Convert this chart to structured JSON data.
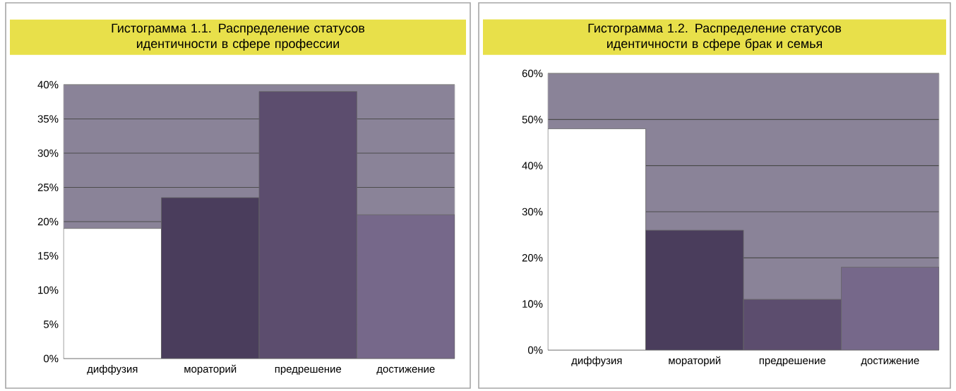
{
  "chart_data": [
    {
      "type": "bar",
      "title": "Гистограмма 1.1. Распределение статусов идентичности в сфере профессии",
      "categories": [
        "диффузия",
        "мораторий",
        "предрешение",
        "достижение"
      ],
      "values": [
        19,
        23.5,
        39,
        21
      ],
      "colors": [
        "#ffffff",
        "#4a3d5c",
        "#5c4d6e",
        "#76688a"
      ],
      "ylim": [
        0,
        40
      ],
      "yticks": [
        {
          "value": 0,
          "label": "0%"
        },
        {
          "value": 5,
          "label": "5%"
        },
        {
          "value": 10,
          "label": "10%"
        },
        {
          "value": 15,
          "label": "15%"
        },
        {
          "value": 20,
          "label": "20%"
        },
        {
          "value": 25,
          "label": "25%"
        },
        {
          "value": 30,
          "label": "30%"
        },
        {
          "value": 35,
          "label": "35%"
        },
        {
          "value": 40,
          "label": "40%"
        }
      ],
      "grid": "y"
    },
    {
      "type": "bar",
      "title": "Гистограмма 1.2. Распределение статусов идентичности в сфере брак и семья",
      "categories": [
        "диффузия",
        "мораторий",
        "предрешение",
        "достижение"
      ],
      "values": [
        48,
        26,
        11,
        18
      ],
      "colors": [
        "#ffffff",
        "#4a3d5c",
        "#5c4d6e",
        "#76688a"
      ],
      "ylim": [
        0,
        60
      ],
      "yticks": [
        {
          "value": 0,
          "label": "0%"
        },
        {
          "value": 10,
          "label": "10%"
        },
        {
          "value": 20,
          "label": "20%"
        },
        {
          "value": 30,
          "label": "30%"
        },
        {
          "value": 40,
          "label": "40%"
        },
        {
          "value": 50,
          "label": "50%"
        },
        {
          "value": 60,
          "label": "60%"
        }
      ],
      "grid": "y"
    }
  ]
}
